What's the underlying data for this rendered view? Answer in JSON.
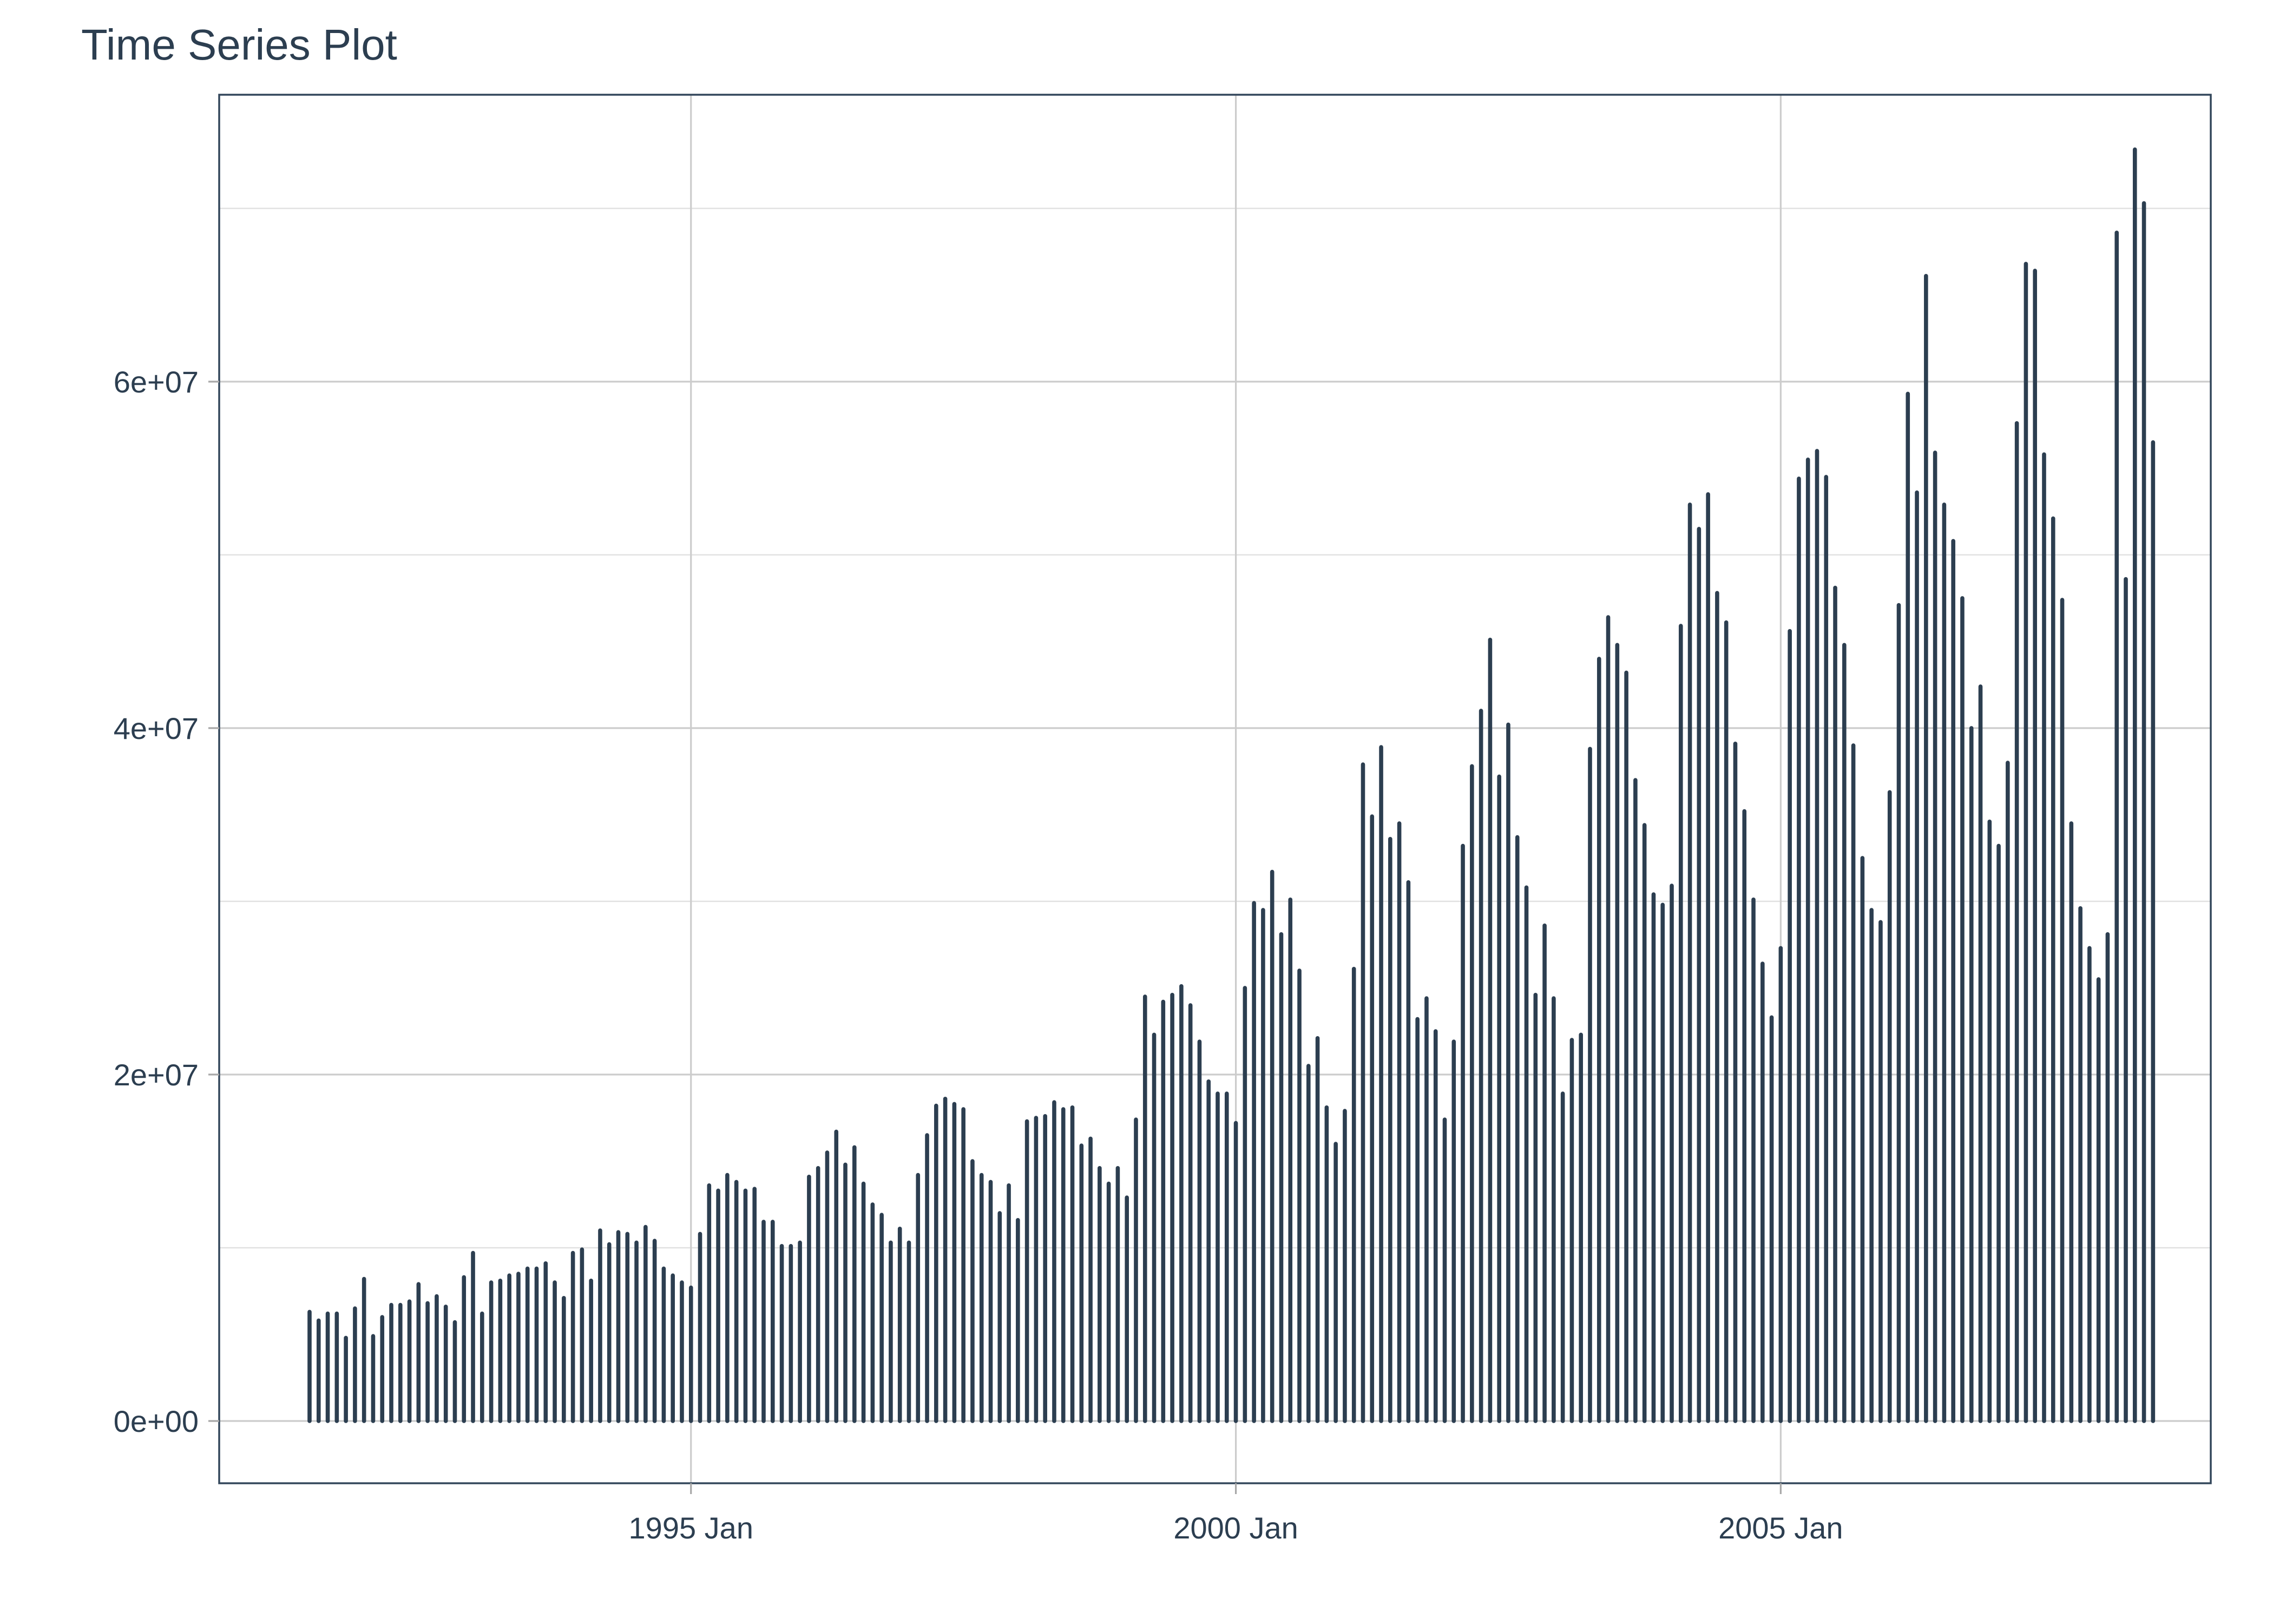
{
  "title": "Time Series Plot",
  "colors": {
    "bar": "#2c3e50",
    "title_text": "#2c3e50",
    "axis_text": "#2c3e50",
    "grid_major": "#cccccc",
    "grid_minor": "#e1e1e1",
    "panel_border": "#33475b",
    "background": "#ffffff"
  },
  "chart_data": {
    "type": "bar",
    "title": "Time Series Plot",
    "xlabel": "",
    "ylabel": "",
    "grid": true,
    "legend": "none",
    "frequency": "monthly",
    "start_month": "1991-07",
    "end_month": "2008-06",
    "ylim": [
      0,
      76000000
    ],
    "y_major_ticks": [
      0,
      20000000,
      40000000,
      60000000
    ],
    "y_minor_ticks": [
      10000000,
      30000000,
      50000000,
      70000000
    ],
    "y_tick_labels": [
      "0e+00",
      "2e+07",
      "4e+07",
      "6e+07"
    ],
    "x_ticks": [
      {
        "label": "1995 Jan",
        "date": "1995-01"
      },
      {
        "label": "2000 Jan",
        "date": "2000-01"
      },
      {
        "label": "2005 Jan",
        "date": "2005-01"
      }
    ],
    "values": [
      6300000,
      5800000,
      6200000,
      6200000,
      4800000,
      6500000,
      8200000,
      4900000,
      6000000,
      6700000,
      6700000,
      6900000,
      7900000,
      6800000,
      7200000,
      6600000,
      5700000,
      8300000,
      9700000,
      6200000,
      8000000,
      8100000,
      8400000,
      8500000,
      8800000,
      8800000,
      9100000,
      8000000,
      7100000,
      9700000,
      9900000,
      8100000,
      11000000,
      10200000,
      10900000,
      10800000,
      10300000,
      11200000,
      10400000,
      8800000,
      8400000,
      8000000,
      7700000,
      10800000,
      13600000,
      13300000,
      14200000,
      13800000,
      13300000,
      13400000,
      11500000,
      11500000,
      10100000,
      10100000,
      10300000,
      14100000,
      14600000,
      15500000,
      16700000,
      14800000,
      15800000,
      13700000,
      12500000,
      11900000,
      10300000,
      11100000,
      10300000,
      14200000,
      16500000,
      18200000,
      18600000,
      18300000,
      18000000,
      15000000,
      14200000,
      13800000,
      12000000,
      13600000,
      11600000,
      17300000,
      17500000,
      17600000,
      18400000,
      18000000,
      18100000,
      15900000,
      16300000,
      14600000,
      13700000,
      14600000,
      12900000,
      17400000,
      24500000,
      22300000,
      24200000,
      24600000,
      25100000,
      24000000,
      21900000,
      19600000,
      18900000,
      18900000,
      17200000,
      25000000,
      29900000,
      29500000,
      31700000,
      28100000,
      30100000,
      26000000,
      20500000,
      22100000,
      18100000,
      16000000,
      17900000,
      26100000,
      37900000,
      34900000,
      38900000,
      33600000,
      34500000,
      31100000,
      23200000,
      24400000,
      22500000,
      17400000,
      21900000,
      33200000,
      37800000,
      41000000,
      45100000,
      37200000,
      40200000,
      33700000,
      30800000,
      24600000,
      28600000,
      24400000,
      18900000,
      22000000,
      22300000,
      38800000,
      44000000,
      46400000,
      44800000,
      43200000,
      37000000,
      34400000,
      30400000,
      29800000,
      30900000,
      45900000,
      52900000,
      51500000,
      53500000,
      47800000,
      46100000,
      39100000,
      35200000,
      30100000,
      26400000,
      23300000,
      27300000,
      45600000,
      54400000,
      55500000,
      56000000,
      54500000,
      48100000,
      44800000,
      39000000,
      32500000,
      29500000,
      28800000,
      36300000,
      47100000,
      59300000,
      53600000,
      66100000,
      55900000,
      52900000,
      50800000,
      47500000,
      40000000,
      42400000,
      34600000,
      33200000,
      38000000,
      57600000,
      66800000,
      66400000,
      55800000,
      52100000,
      47400000,
      34500000,
      29600000,
      27300000,
      25500000,
      28100000,
      68600000,
      48600000,
      73400000,
      70300000,
      56500000
    ]
  }
}
